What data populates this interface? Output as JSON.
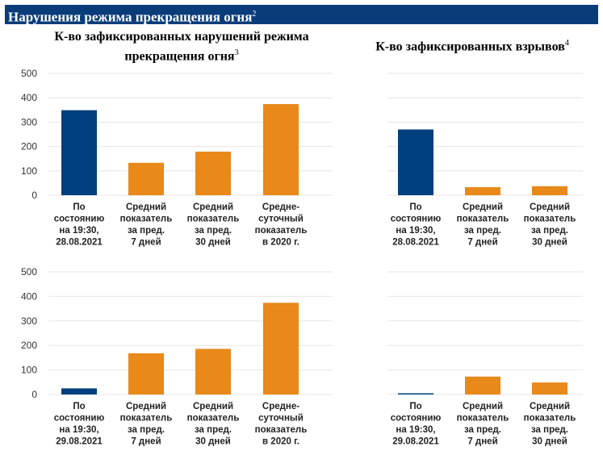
{
  "header": {
    "title": "Нарушения режима прекращения огня",
    "title_note": "2"
  },
  "titles": {
    "left": "К-во зафиксированных нарушений режима прекращения огня",
    "left_note": "3",
    "right": "К-во зафиксированных взрывов",
    "right_note": "4"
  },
  "colors": {
    "current": "#003f7d",
    "average": "#e8891a"
  },
  "chart_data": [
    {
      "type": "bar",
      "title": "К-во зафиксированных нарушений режима прекращения огня",
      "categories": [
        "По состоянию на 19:30, 28.08.2021",
        "Средний показатель за пред. 7 дней",
        "Средний показатель за пред. 30 дней",
        "Средне-суточный показатель в 2020 г."
      ],
      "category_lines": [
        [
          "По",
          "состоянию",
          "на 19:30,",
          "28.08.2021"
        ],
        [
          "Средний",
          "показатель",
          "за пред.",
          "7 дней"
        ],
        [
          "Средний",
          "показатель",
          "за пред.",
          "30 дней"
        ],
        [
          "Средне-",
          "суточный",
          "показатель",
          "в 2020 г."
        ]
      ],
      "values": [
        349,
        133,
        179,
        374
      ],
      "ylim": [
        0,
        500
      ],
      "yticks": [
        0,
        100,
        200,
        300,
        400,
        500
      ],
      "grid": true
    },
    {
      "type": "bar",
      "title": "К-во зафиксированных взрывов",
      "categories": [
        "По состоянию на 19:30, 28.08.2021",
        "Средний показатель за пред. 7 дней",
        "Средний показатель за пред. 30 дней"
      ],
      "category_lines": [
        [
          "По",
          "состоянию",
          "на 19:30,",
          "28.08.2021"
        ],
        [
          "Средний",
          "показатель",
          "за пред.",
          "7 дней"
        ],
        [
          "Средний",
          "показатель",
          "за пред.",
          "30 дней"
        ]
      ],
      "values": [
        270,
        33,
        37
      ],
      "ylim": [
        0,
        500
      ],
      "yticks": [
        0,
        100,
        200,
        300,
        400,
        500
      ],
      "grid": true
    },
    {
      "type": "bar",
      "title": "К-во зафиксированных нарушений режима прекращения огня",
      "categories": [
        "По состоянию на 19:30, 29.08.2021",
        "Средний показатель за пред. 7 дней",
        "Средний показатель за пред. 30 дней",
        "Средне-суточный показатель в 2020 г."
      ],
      "category_lines": [
        [
          "По",
          "состоянию",
          "на 19:30,",
          "29.08.2021"
        ],
        [
          "Средний",
          "показатель",
          "за пред.",
          "7 дней"
        ],
        [
          "Средний",
          "показатель",
          "за пред.",
          "30 дней"
        ],
        [
          "Средне-",
          "суточный",
          "показатель",
          "в 2020 г."
        ]
      ],
      "values": [
        25,
        168,
        186,
        374
      ],
      "ylim": [
        0,
        500
      ],
      "yticks": [
        0,
        100,
        200,
        300,
        400,
        500
      ],
      "grid": true
    },
    {
      "type": "bar",
      "title": "К-во зафиксированных взрывов",
      "categories": [
        "По состоянию на 19:30, 29.08.2021",
        "Средний показатель за пред. 7 дней",
        "Средний показатель за пред. 30 дней"
      ],
      "category_lines": [
        [
          "По",
          "состоянию",
          "на 19:30,",
          "29.08.2021"
        ],
        [
          "Средний",
          "показатель",
          "за пред.",
          "7 дней"
        ],
        [
          "Средний",
          "показатель",
          "за пред.",
          "30 дней"
        ]
      ],
      "values": [
        5,
        73,
        49
      ],
      "ylim": [
        0,
        500
      ],
      "yticks": [
        0,
        100,
        200,
        300,
        400,
        500
      ],
      "grid": true
    }
  ]
}
